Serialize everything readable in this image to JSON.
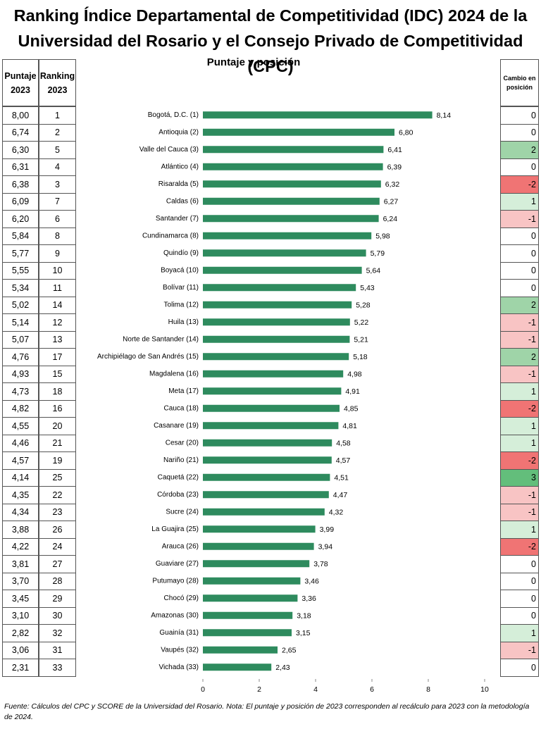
{
  "title": "Ranking Índice Departamental de Competitividad (IDC) 2024 de la Universidad del Rosario y el Consejo Privado de Competitividad (CPC)",
  "subtitle": "Puntaje y posición",
  "footnote": "Fuente: Cálculos del CPC y SCORE de la Universidad del Rosario. Nota: El puntaje y posición de 2023 corresponden al recálculo para 2023 con la metodología de 2024.",
  "left_table": {
    "headers": [
      "Puntaje 2023",
      "Ranking 2023"
    ],
    "rows": [
      [
        "8,00",
        "1"
      ],
      [
        "6,74",
        "2"
      ],
      [
        "6,30",
        "5"
      ],
      [
        "6,31",
        "4"
      ],
      [
        "6,38",
        "3"
      ],
      [
        "6,09",
        "7"
      ],
      [
        "6,20",
        "6"
      ],
      [
        "5,84",
        "8"
      ],
      [
        "5,77",
        "9"
      ],
      [
        "5,55",
        "10"
      ],
      [
        "5,34",
        "11"
      ],
      [
        "5,02",
        "14"
      ],
      [
        "5,14",
        "12"
      ],
      [
        "5,07",
        "13"
      ],
      [
        "4,76",
        "17"
      ],
      [
        "4,93",
        "15"
      ],
      [
        "4,73",
        "18"
      ],
      [
        "4,82",
        "16"
      ],
      [
        "4,55",
        "20"
      ],
      [
        "4,46",
        "21"
      ],
      [
        "4,57",
        "19"
      ],
      [
        "4,14",
        "25"
      ],
      [
        "4,35",
        "22"
      ],
      [
        "4,34",
        "23"
      ],
      [
        "3,88",
        "26"
      ],
      [
        "4,22",
        "24"
      ],
      [
        "3,81",
        "27"
      ],
      [
        "3,70",
        "28"
      ],
      [
        "3,45",
        "29"
      ],
      [
        "3,10",
        "30"
      ],
      [
        "2,82",
        "32"
      ],
      [
        "3,06",
        "31"
      ],
      [
        "2,31",
        "33"
      ]
    ]
  },
  "change_table": {
    "header": "Cambio en posición",
    "values": [
      0,
      0,
      2,
      0,
      -2,
      1,
      -1,
      0,
      0,
      0,
      0,
      2,
      -1,
      -1,
      2,
      -1,
      1,
      -2,
      1,
      1,
      -2,
      3,
      -1,
      -1,
      1,
      -2,
      0,
      0,
      0,
      0,
      1,
      -1,
      0
    ]
  },
  "chart_data": {
    "type": "bar",
    "orientation": "horizontal",
    "color": "#2e8b5e",
    "categories": [
      "Bogotá, D.C. (1)",
      "Antioquia (2)",
      "Valle del Cauca (3)",
      "Atlántico (4)",
      "Risaralda (5)",
      "Caldas (6)",
      "Santander (7)",
      "Cundinamarca (8)",
      "Quindío (9)",
      "Boyacá (10)",
      "Bolívar (11)",
      "Tolima (12)",
      "Huila (13)",
      "Norte de Santander (14)",
      "Archipiélago de San Andrés (15)",
      "Magdalena (16)",
      "Meta (17)",
      "Cauca (18)",
      "Casanare (19)",
      "Cesar (20)",
      "Nariño (21)",
      "Caquetá (22)",
      "Córdoba (23)",
      "Sucre (24)",
      "La Guajira (25)",
      "Arauca (26)",
      "Guaviare (27)",
      "Putumayo (28)",
      "Chocó (29)",
      "Amazonas (30)",
      "Guainía (31)",
      "Vaupés (32)",
      "Vichada (33)"
    ],
    "values": [
      8.14,
      6.8,
      6.41,
      6.39,
      6.32,
      6.27,
      6.24,
      5.98,
      5.79,
      5.64,
      5.43,
      5.28,
      5.22,
      5.21,
      5.18,
      4.98,
      4.91,
      4.85,
      4.81,
      4.58,
      4.57,
      4.51,
      4.47,
      4.32,
      3.99,
      3.94,
      3.78,
      3.46,
      3.36,
      3.18,
      3.15,
      2.65,
      2.43
    ],
    "value_labels": [
      "8,14",
      "6,80",
      "6,41",
      "6,39",
      "6,32",
      "6,27",
      "6,24",
      "5,98",
      "5,79",
      "5,64",
      "5,43",
      "5,28",
      "5,22",
      "5,21",
      "5,18",
      "4,98",
      "4,91",
      "4,85",
      "4,81",
      "4,58",
      "4,57",
      "4,51",
      "4,47",
      "4,32",
      "3,99",
      "3,94",
      "3,78",
      "3,46",
      "3,36",
      "3,18",
      "3,15",
      "2,65",
      "2,43"
    ],
    "xlim": [
      0,
      10
    ],
    "xticks": [
      0,
      2,
      4,
      6,
      8,
      10
    ]
  }
}
